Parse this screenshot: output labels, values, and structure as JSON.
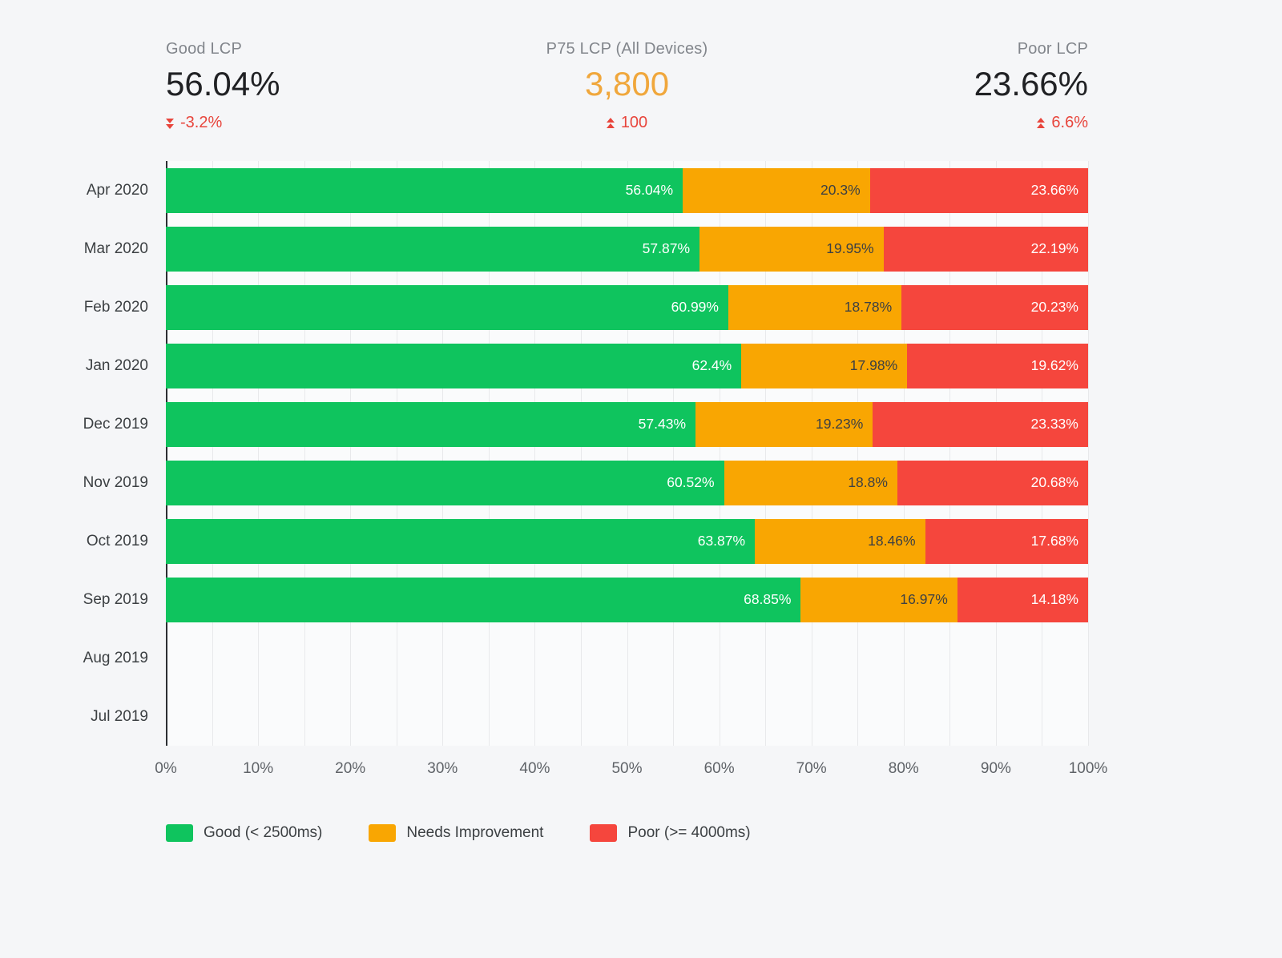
{
  "kpis": {
    "good": {
      "label": "Good LCP",
      "value": "56.04%",
      "change": "-3.2%",
      "direction": "down"
    },
    "p75": {
      "label": "P75 LCP (All Devices)",
      "value": "3,800",
      "change": "100",
      "direction": "up"
    },
    "poor": {
      "label": "Poor LCP",
      "value": "23.66%",
      "change": "6.6%",
      "direction": "up"
    }
  },
  "colors": {
    "good": "#0fc45e",
    "needs_improvement": "#f9a602",
    "poor": "#f5463d",
    "kpi_orange": "#f0a73c",
    "change_red": "#e8453c"
  },
  "chart_data": {
    "type": "bar",
    "orientation": "horizontal",
    "stacked": true,
    "grid": true,
    "legend_position": "bottom",
    "xlim": [
      0,
      100
    ],
    "x_ticks": [
      "0%",
      "10%",
      "20%",
      "30%",
      "40%",
      "50%",
      "60%",
      "70%",
      "80%",
      "90%",
      "100%"
    ],
    "categories": [
      "Apr 2020",
      "Mar 2020",
      "Feb 2020",
      "Jan 2020",
      "Dec 2019",
      "Nov 2019",
      "Oct 2019",
      "Sep 2019",
      "Aug 2019",
      "Jul 2019"
    ],
    "series": [
      {
        "key": "good",
        "name": "Good (< 2500ms)",
        "color": "#0fc45e",
        "label_color": "#ffffff",
        "values": [
          56.04,
          57.87,
          60.99,
          62.4,
          57.43,
          60.52,
          63.87,
          68.85,
          null,
          null
        ]
      },
      {
        "key": "needs-improvement",
        "name": "Needs Improvement",
        "color": "#f9a602",
        "label_color": "#3d4043",
        "values": [
          20.3,
          19.95,
          18.78,
          17.98,
          19.23,
          18.8,
          18.46,
          16.97,
          null,
          null
        ]
      },
      {
        "key": "poor",
        "name": "Poor (>= 4000ms)",
        "color": "#f5463d",
        "label_color": "#ffffff",
        "values": [
          23.66,
          22.19,
          20.23,
          19.62,
          23.33,
          20.68,
          17.68,
          14.18,
          null,
          null
        ]
      }
    ]
  }
}
